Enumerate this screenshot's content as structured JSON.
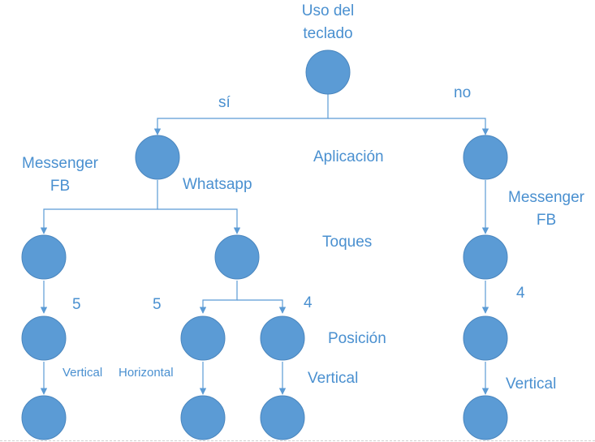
{
  "colors": {
    "node": "#5B9BD5",
    "edge": "#5B9BD5",
    "text": "#4A90D0"
  },
  "root_label": "Uso del teclado",
  "root_label_lines": [
    "Uso del",
    "teclado"
  ],
  "branch_yes": "sí",
  "branch_no": "no",
  "level_labels": {
    "application": "Aplicación",
    "touches": "Toques",
    "position": "Posición"
  },
  "app_left": {
    "messenger_lines": [
      "Messenger",
      "FB"
    ],
    "whatsapp": "Whatsapp"
  },
  "app_right": {
    "messenger_lines": [
      "Messenger",
      "FB"
    ]
  },
  "touch_values": {
    "left": "5",
    "middle": "5",
    "mid_right": "4",
    "right": "4"
  },
  "position_values": {
    "left": "Vertical",
    "middle": "Horizontal",
    "mid_right": "Vertical",
    "right": "Vertical"
  }
}
